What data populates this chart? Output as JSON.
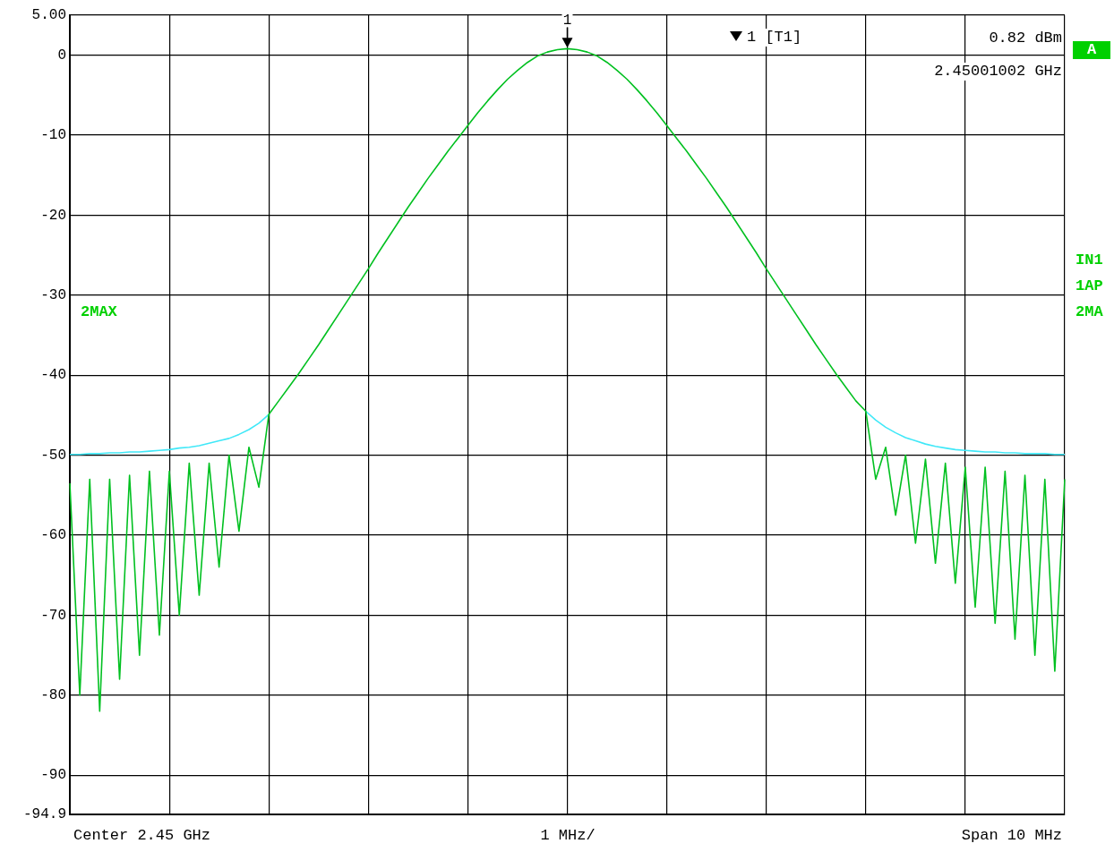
{
  "chart_data": {
    "type": "line",
    "categories": [
      null,
      null,
      null,
      null,
      null,
      null,
      null,
      null,
      null,
      null,
      null,
      null,
      null,
      null,
      null,
      null,
      null,
      null,
      null,
      null,
      null,
      null,
      null,
      null,
      null,
      null,
      null,
      null,
      null,
      null,
      null,
      null,
      null,
      null,
      null,
      null,
      null,
      null,
      null,
      null,
      null,
      null,
      null,
      null,
      null,
      null,
      null,
      null,
      null,
      null,
      null,
      null,
      null,
      null,
      null,
      null,
      null,
      null,
      null,
      null,
      null,
      null,
      null,
      null,
      null,
      null,
      null,
      null,
      null,
      null,
      null,
      null,
      null,
      null,
      null,
      null,
      null,
      null,
      null,
      null,
      null,
      null,
      null,
      null,
      null,
      null,
      null,
      null,
      null,
      null,
      null,
      null,
      null,
      null,
      null,
      null,
      null,
      null,
      null,
      null,
      null
    ],
    "series": [
      {
        "color": "#00c020",
        "values": [
          -53.5,
          -80,
          -53,
          -82,
          -53,
          -78,
          -52.5,
          -75,
          -52,
          -72.5,
          -52,
          -70,
          -51,
          -67.5,
          -51,
          -64,
          -50,
          -59.5,
          -49,
          -54,
          -44.9,
          -43.2,
          -41.5,
          -39.8,
          -38.0,
          -36.2,
          -34.3,
          -32.4,
          -30.5,
          -28.6,
          -26.7,
          -24.7,
          -22.8,
          -20.9,
          -19.0,
          -17.2,
          -15.4,
          -13.7,
          -12.0,
          -10.4,
          -8.8,
          -7.2,
          -5.7,
          -4.3,
          -3.0,
          -1.9,
          -0.9,
          -0.1,
          0.4,
          0.7,
          0.82,
          0.7,
          0.4,
          -0.1,
          -0.9,
          -1.9,
          -3.0,
          -4.3,
          -5.7,
          -7.2,
          -8.8,
          -10.4,
          -12.0,
          -13.7,
          -15.4,
          -17.2,
          -19.0,
          -20.9,
          -22.8,
          -24.7,
          -26.7,
          -28.6,
          -30.5,
          -32.4,
          -34.3,
          -36.2,
          -38.0,
          -39.8,
          -41.5,
          -43.2,
          -44.5,
          -53,
          -49,
          -57.5,
          -50,
          -61,
          -50.5,
          -63.5,
          -51,
          -66,
          -51.5,
          -69,
          -51.5,
          -71,
          -52,
          -73,
          -52.5,
          -75,
          -53,
          -77,
          -53
        ]
      },
      {
        "color": "#40e8f8",
        "values": [
          -49.9,
          -49.9,
          -49.8,
          -49.8,
          -49.7,
          -49.7,
          -49.6,
          -49.6,
          -49.5,
          -49.4,
          -49.3,
          -49.1,
          -49.0,
          -48.8,
          -48.5,
          -48.2,
          -47.9,
          -47.4,
          -46.8,
          -46.0,
          -44.9,
          null,
          null,
          null,
          null,
          null,
          null,
          null,
          null,
          null,
          null,
          null,
          null,
          null,
          null,
          null,
          null,
          null,
          null,
          null,
          null,
          null,
          null,
          null,
          null,
          null,
          null,
          null,
          null,
          null,
          null,
          null,
          null,
          null,
          null,
          null,
          null,
          null,
          null,
          null,
          null,
          null,
          null,
          null,
          null,
          null,
          null,
          null,
          null,
          null,
          null,
          null,
          null,
          null,
          null,
          null,
          null,
          null,
          null,
          null,
          -44.5,
          -45.6,
          -46.5,
          -47.2,
          -47.8,
          -48.2,
          -48.6,
          -48.9,
          -49.1,
          -49.3,
          -49.4,
          -49.5,
          -49.6,
          -49.6,
          -49.7,
          -49.7,
          -49.8,
          -49.8,
          -49.8,
          -49.9,
          -49.9
        ]
      }
    ],
    "ylim": [
      -94.9,
      5
    ],
    "yticks": [
      {
        "value": 5,
        "label": "5.00"
      },
      0,
      -10,
      -20,
      -30,
      -40,
      -50,
      -60,
      -70,
      -80,
      -90,
      {
        "value": -94.9,
        "label": "-94.9"
      }
    ],
    "grid": true,
    "legend": false,
    "tick_labels": "y",
    "marker": "none",
    "line_style": "solid",
    "annotations": [
      "Center 2.45 GHz",
      "1 MHz/",
      "Span 10 MHz",
      "1 [T1]",
      "0.82 dBm",
      "2.45001002 GHz",
      "A",
      "IN1",
      "1AP",
      "2MA",
      "2MAX",
      {
        "text": "1",
        "y": 0.82
      }
    ]
  }
}
